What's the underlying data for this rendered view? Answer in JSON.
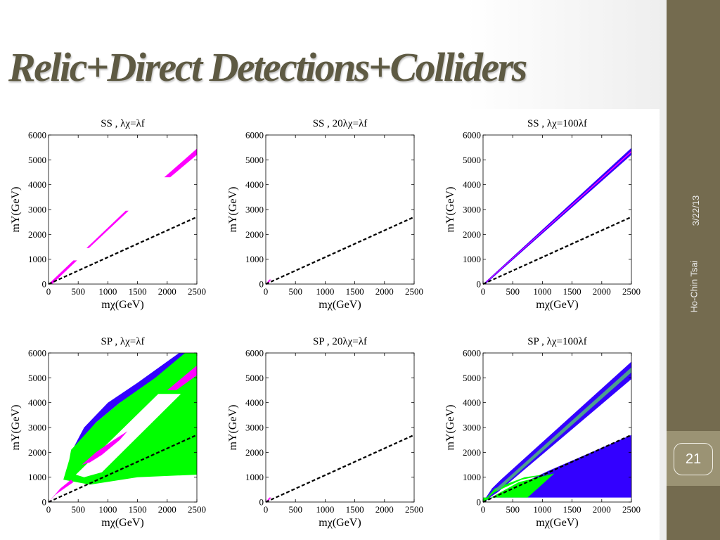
{
  "slide": {
    "title": "Relic+Direct Detections+Colliders",
    "date": "3/22/13",
    "author": "Ho-Chin Tsai",
    "page_number": "21"
  },
  "chart_data": [
    {
      "type": "area",
      "title": "SS ,  λχ=λf",
      "xlabel": "mχ(GeV)",
      "ylabel": "mY(GeV)",
      "xlim": [
        0,
        2500
      ],
      "ylim": [
        0,
        6000
      ],
      "xticks": [
        0,
        500,
        1000,
        1500,
        2000,
        2500
      ],
      "yticks": [
        0,
        1000,
        2000,
        3000,
        4000,
        5000,
        6000
      ],
      "reference_line": {
        "style": "dashed",
        "color": "#000000",
        "points": [
          [
            0,
            0
          ],
          [
            2500,
            2700
          ]
        ]
      },
      "regions": [
        {
          "color": "#ff00ff",
          "points": [
            [
              0,
              0
            ],
            [
              420,
              950
            ],
            [
              480,
              950
            ],
            [
              60,
              0
            ]
          ]
        },
        {
          "color": "#ff00ff",
          "points": [
            [
              680,
              1450
            ],
            [
              1350,
              2950
            ],
            [
              1300,
              2950
            ],
            [
              640,
              1450
            ]
          ]
        },
        {
          "color": "#ff00ff",
          "points": [
            [
              1950,
              4300
            ],
            [
              2500,
              5450
            ],
            [
              2500,
              5200
            ],
            [
              2050,
              4300
            ]
          ]
        }
      ]
    },
    {
      "type": "area",
      "title": "SS , 20λχ=λf",
      "xlabel": "mχ(GeV)",
      "ylabel": "mY(GeV)",
      "xlim": [
        0,
        2500
      ],
      "ylim": [
        0,
        6000
      ],
      "xticks": [
        0,
        500,
        1000,
        1500,
        2000,
        2500
      ],
      "yticks": [
        0,
        1000,
        2000,
        3000,
        4000,
        5000,
        6000
      ],
      "reference_line": {
        "style": "dashed",
        "color": "#000000",
        "points": [
          [
            0,
            0
          ],
          [
            2500,
            2700
          ]
        ]
      },
      "regions": [
        {
          "color": "#ff00ff",
          "points": [
            [
              0,
              0
            ],
            [
              60,
              180
            ],
            [
              90,
              180
            ],
            [
              30,
              0
            ]
          ]
        }
      ]
    },
    {
      "type": "area",
      "title": "SS ,  λχ=100λf",
      "xlabel": "mχ(GeV)",
      "ylabel": "mY(GeV)",
      "xlim": [
        0,
        2500
      ],
      "ylim": [
        0,
        6000
      ],
      "xticks": [
        0,
        500,
        1000,
        1500,
        2000,
        2500
      ],
      "yticks": [
        0,
        1000,
        2000,
        3000,
        4000,
        5000,
        6000
      ],
      "reference_line": {
        "style": "dashed",
        "color": "#000000",
        "points": [
          [
            0,
            0
          ],
          [
            2500,
            2700
          ]
        ]
      },
      "regions": [
        {
          "color": "#3300ff",
          "points": [
            [
              0,
              0
            ],
            [
              2500,
              5480
            ],
            [
              2500,
              5200
            ],
            [
              40,
              0
            ]
          ]
        },
        {
          "color": "#ff00ff",
          "points": [
            [
              10,
              0
            ],
            [
              2500,
              5360
            ],
            [
              2500,
              5300
            ],
            [
              25,
              0
            ]
          ]
        }
      ]
    },
    {
      "type": "area",
      "title": "SP ,  λχ=λf",
      "xlabel": "mχ(GeV)",
      "ylabel": "mY(GeV)",
      "xlim": [
        0,
        2500
      ],
      "ylim": [
        0,
        6000
      ],
      "xticks": [
        0,
        500,
        1000,
        1500,
        2000,
        2500
      ],
      "yticks": [
        0,
        1000,
        2000,
        3000,
        4000,
        5000,
        6000
      ],
      "reference_line": {
        "style": "dashed",
        "color": "#000000",
        "points": [
          [
            0,
            0
          ],
          [
            2500,
            2700
          ]
        ]
      },
      "regions": [
        {
          "color": "#3300ff",
          "points": [
            [
              380,
              2000
            ],
            [
              600,
              3000
            ],
            [
              1000,
              4000
            ],
            [
              1500,
              4800
            ],
            [
              2200,
              6000
            ],
            [
              2500,
              6000
            ],
            [
              2500,
              5200
            ],
            [
              1200,
              4000
            ],
            [
              800,
              3200
            ],
            [
              380,
              2000
            ]
          ]
        },
        {
          "color": "#00ff00",
          "points": [
            [
              250,
              900
            ],
            [
              350,
              1700
            ],
            [
              380,
              2100
            ],
            [
              800,
              3200
            ],
            [
              1200,
              4000
            ],
            [
              1800,
              5000
            ],
            [
              2300,
              6000
            ],
            [
              2500,
              6000
            ],
            [
              2500,
              1100
            ],
            [
              1500,
              1000
            ],
            [
              700,
              700
            ],
            [
              250,
              900
            ]
          ]
        },
        {
          "color": "#ffffff",
          "points": [
            [
              460,
              1100
            ],
            [
              1850,
              4350
            ],
            [
              2230,
              4350
            ],
            [
              900,
              1200
            ],
            [
              600,
              1000
            ],
            [
              460,
              1100
            ]
          ]
        },
        {
          "color": "#ff00ff",
          "points": [
            [
              560,
              1500
            ],
            [
              800,
              2000
            ],
            [
              1100,
              2500
            ],
            [
              1330,
              2850
            ],
            [
              1200,
              2500
            ],
            [
              900,
              1900
            ],
            [
              700,
              1600
            ],
            [
              560,
              1500
            ]
          ]
        },
        {
          "color": "#ff00ff",
          "points": [
            [
              2000,
              4500
            ],
            [
              2500,
              5500
            ],
            [
              2500,
              5100
            ],
            [
              2150,
              4500
            ]
          ]
        },
        {
          "color": "#ff00ff",
          "points": [
            [
              0,
              0
            ],
            [
              200,
              550
            ],
            [
              380,
              900
            ],
            [
              420,
              800
            ],
            [
              120,
              300
            ],
            [
              0,
              0
            ]
          ]
        }
      ]
    },
    {
      "type": "area",
      "title": "SP , 20λχ=λf",
      "xlabel": "mχ(GeV)",
      "ylabel": "mY(GeV)",
      "xlim": [
        0,
        2500
      ],
      "ylim": [
        0,
        6000
      ],
      "xticks": [
        0,
        500,
        1000,
        1500,
        2000,
        2500
      ],
      "yticks": [
        0,
        1000,
        2000,
        3000,
        4000,
        5000,
        6000
      ],
      "reference_line": {
        "style": "dashed",
        "color": "#000000",
        "points": [
          [
            0,
            0
          ],
          [
            2500,
            2700
          ]
        ]
      },
      "regions": [
        {
          "color": "#ff00ff",
          "points": [
            [
              0,
              0
            ],
            [
              60,
              180
            ],
            [
              90,
              180
            ],
            [
              30,
              0
            ]
          ]
        }
      ]
    },
    {
      "type": "area",
      "title": "SP ,  λχ=100λf",
      "xlabel": "mχ(GeV)",
      "ylabel": "mY(GeV)",
      "xlim": [
        0,
        2500
      ],
      "ylim": [
        0,
        6000
      ],
      "xticks": [
        0,
        500,
        1000,
        1500,
        2000,
        2500
      ],
      "yticks": [
        0,
        1000,
        2000,
        3000,
        4000,
        5000,
        6000
      ],
      "reference_line": {
        "style": "dashed",
        "color": "#000000",
        "points": [
          [
            0,
            0
          ],
          [
            2500,
            2700
          ]
        ]
      },
      "regions": [
        {
          "color": "#3300ff",
          "points": [
            [
              0,
              0
            ],
            [
              150,
              550
            ],
            [
              300,
              900
            ],
            [
              2500,
              5650
            ],
            [
              2500,
              4950
            ],
            [
              250,
              400
            ],
            [
              0,
              0
            ]
          ]
        },
        {
          "color": "#3300ff",
          "points": [
            [
              0,
              0
            ],
            [
              1100,
              1250
            ],
            [
              2500,
              2700
            ],
            [
              2500,
              180
            ],
            [
              0,
              180
            ]
          ]
        },
        {
          "color": "#00ff00",
          "points": [
            [
              0,
              0
            ],
            [
              600,
              800
            ],
            [
              1200,
              1150
            ],
            [
              750,
              180
            ],
            [
              0,
              180
            ]
          ]
        },
        {
          "color": "#00ff00",
          "points": [
            [
              0,
              0
            ],
            [
              200,
              550
            ],
            [
              700,
              1000
            ],
            [
              1150,
              1150
            ],
            [
              650,
              900
            ],
            [
              200,
              400
            ],
            [
              0,
              0
            ]
          ]
        },
        {
          "color": "#4d9e8e",
          "points": [
            [
              200,
              500
            ],
            [
              2500,
              5420
            ],
            [
              2500,
              5220
            ],
            [
              250,
              450
            ],
            [
              200,
              500
            ]
          ]
        }
      ]
    }
  ]
}
